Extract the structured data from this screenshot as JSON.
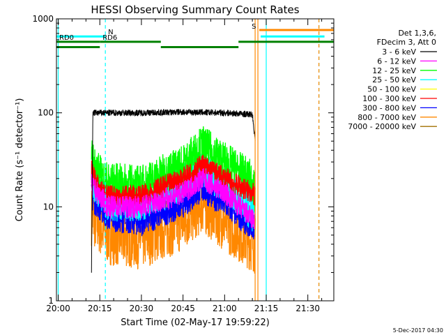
{
  "chart_data": {
    "type": "line",
    "title": "HESSI Observing Summary Count Rates",
    "xlabel": "Start Time (02-May-17 19:59:22)",
    "ylabel": "Count Rate (s⁻¹ detector⁻¹)",
    "yscale": "log",
    "ylim": [
      1,
      1000
    ],
    "xlim": [
      "19:59:22",
      "21:39:22"
    ],
    "x_ticks": [
      "20:00",
      "20:15",
      "20:30",
      "20:45",
      "21:00",
      "21:15",
      "21:30"
    ],
    "y_ticks": [
      "1",
      "10",
      "100",
      "1000"
    ],
    "legend": {
      "header_lines": [
        "Det 1,3,6,",
        "FDecim 3, Att 0"
      ],
      "placement": "right"
    },
    "series": [
      {
        "name": "3 - 6 keV",
        "color": "#000000",
        "x": [
          "20:12",
          "20:12:30",
          "20:15",
          "20:30",
          "20:45",
          "21:00",
          "21:10",
          "21:11"
        ],
        "values": [
          2,
          100,
          100,
          100,
          102,
          100,
          96,
          52
        ]
      },
      {
        "name": "6 - 12 keV",
        "color": "#ff00ff",
        "x": [
          "20:12",
          "20:18",
          "20:30",
          "20:45",
          "20:52",
          "21:00",
          "21:11"
        ],
        "values": [
          17,
          10,
          10,
          14,
          20,
          14,
          7
        ]
      },
      {
        "name": "12 - 25 keV",
        "color": "#00ff00",
        "x": [
          "20:12",
          "20:15",
          "20:18",
          "20:30",
          "20:45",
          "20:52",
          "21:00",
          "21:10",
          "21:11"
        ],
        "values": [
          32,
          22,
          18,
          17,
          28,
          45,
          30,
          19,
          13
        ]
      },
      {
        "name": "25 - 50 keV",
        "color": "#00ffff",
        "x": [
          "20:12",
          "20:18",
          "20:30",
          "20:45",
          "20:52",
          "21:00",
          "21:11"
        ],
        "values": [
          20,
          11,
          11,
          18,
          24,
          18,
          8
        ]
      },
      {
        "name": "50 - 100 keV",
        "color": "#ffff00",
        "x": [],
        "values": []
      },
      {
        "name": "100 - 300 keV",
        "color": "#ff0000",
        "x": [
          "20:12",
          "20:15",
          "20:18",
          "20:30",
          "20:45",
          "20:52",
          "21:00",
          "21:10",
          "21:11"
        ],
        "values": [
          24,
          15,
          13,
          13,
          20,
          28,
          20,
          14,
          13
        ]
      },
      {
        "name": "300 - 800 keV",
        "color": "#0000ff",
        "x": [
          "20:12",
          "20:18",
          "20:30",
          "20:45",
          "20:52",
          "21:00",
          "21:11"
        ],
        "values": [
          13,
          8,
          7,
          11,
          16,
          11,
          6
        ]
      },
      {
        "name": "800 - 7000 keV",
        "color": "#ff8800",
        "x": [
          "20:12",
          "20:18",
          "20:30",
          "20:45",
          "20:52",
          "21:00",
          "21:11"
        ],
        "values": [
          8,
          5,
          4.5,
          7,
          11,
          7,
          4
        ]
      },
      {
        "name": "7000 - 20000 keV",
        "color": "#a07000",
        "x": [],
        "values": []
      }
    ],
    "flags": [
      {
        "label": "N",
        "color": "#00ffff",
        "x_start": "19:59:22",
        "x_end": "20:17",
        "level": 650
      },
      {
        "label": "RD0",
        "color": "#008000",
        "x_start": "19:59:22",
        "x_end": "20:15",
        "level": 570
      },
      {
        "label": "RD6",
        "color": "#008000",
        "x_start": "20:15",
        "x_end": "20:37",
        "level": 570
      },
      {
        "label": "",
        "color": "#008000",
        "x_start": "19:59:22",
        "x_end": "20:15",
        "level": 500
      },
      {
        "label": "",
        "color": "#008000",
        "x_start": "20:37",
        "x_end": "21:05",
        "level": 500
      },
      {
        "label": "",
        "color": "#008000",
        "x_start": "21:05",
        "x_end": "21:39:22",
        "level": 570
      },
      {
        "label": "S",
        "color": "#ff8800",
        "x_start": "21:12:30",
        "x_end": "21:39:22",
        "level": 760
      },
      {
        "label": "",
        "color": "#00ffff",
        "x_start": "21:13",
        "x_end": "21:36",
        "level": 650
      }
    ],
    "vertical_lines": [
      {
        "x": "20:00",
        "color": "#00ffff",
        "style": "solid"
      },
      {
        "x": "20:17",
        "color": "#00ffff",
        "style": "dashed"
      },
      {
        "x": "21:11",
        "color": "#ff8800",
        "style": "solid"
      },
      {
        "x": "21:12",
        "color": "#ff8800",
        "style": "solid"
      },
      {
        "x": "21:15",
        "color": "#00ffff",
        "style": "solid"
      },
      {
        "x": "21:34",
        "color": "#00ffff",
        "style": "dashed"
      },
      {
        "x": "21:34",
        "color": "#ff8800",
        "style": "dashed"
      }
    ],
    "timestamp": "5-Dec-2017 04:30"
  }
}
